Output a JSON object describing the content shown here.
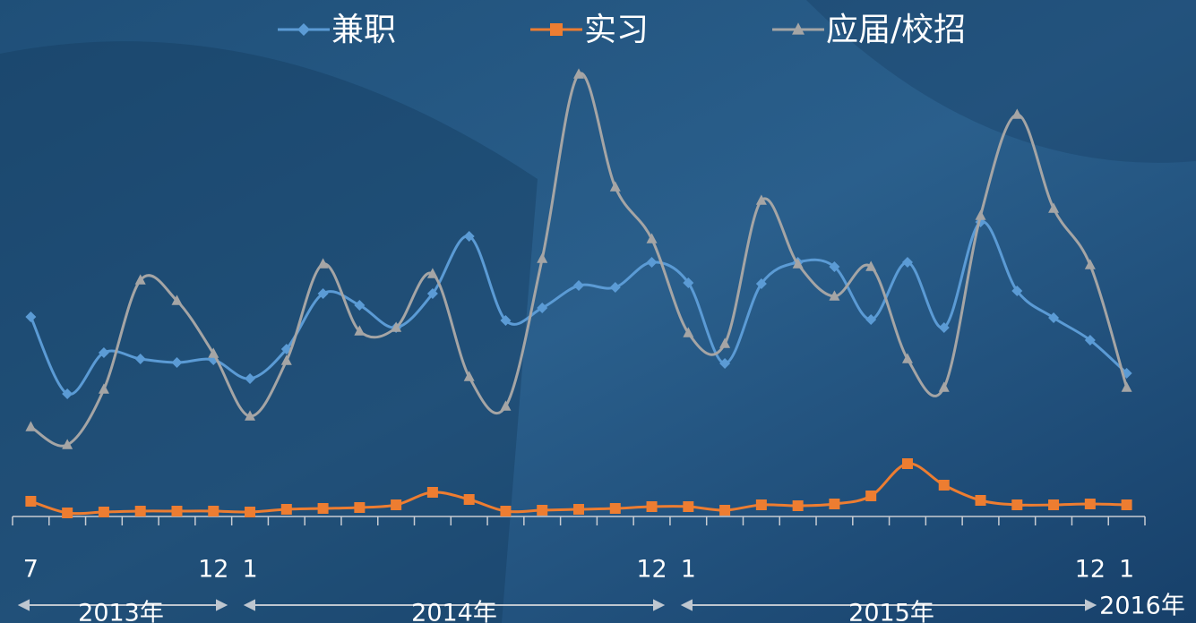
{
  "chart_data": {
    "type": "line",
    "categories": [
      "7",
      null,
      null,
      null,
      null,
      "12",
      "1",
      null,
      null,
      null,
      null,
      null,
      null,
      null,
      null,
      null,
      null,
      "12",
      "1",
      null,
      null,
      null,
      null,
      null,
      null,
      null,
      null,
      null,
      null,
      "12",
      "1"
    ],
    "period_labels": [
      "2013年",
      "2014年",
      "2015年",
      "2016年"
    ],
    "ylim": [
      0,
      100
    ],
    "legend": "top",
    "series": [
      {
        "name": "兼职",
        "color": "#5b9bd5",
        "marker": "diamond",
        "values": [
          44.6,
          27.4,
          36.6,
          35.2,
          34.4,
          35,
          30.8,
          37.4,
          49.8,
          47.2,
          42.2,
          49.8,
          62.6,
          43.8,
          46.6,
          51.6,
          51.2,
          56.8,
          52.2,
          34.2,
          52,
          56.8,
          55.8,
          44,
          56.8,
          42.2,
          65.8,
          50.4,
          44.4,
          39.4,
          32
        ]
      },
      {
        "name": "实习",
        "color": "#ed7d31",
        "marker": "square",
        "values": [
          3.4,
          0.8,
          1,
          1.2,
          1.2,
          1.2,
          1,
          1.6,
          1.8,
          2,
          2.6,
          5.4,
          3.8,
          1.2,
          1.4,
          1.6,
          1.8,
          2.2,
          2.2,
          1.4,
          2.6,
          2.4,
          2.8,
          4.6,
          11.8,
          7,
          3.6,
          2.6,
          2.6,
          2.8,
          2.6
        ]
      },
      {
        "name": "应届/校招",
        "color": "#a5a5a5",
        "marker": "triangle",
        "values": [
          20,
          16,
          28.4,
          52.8,
          48.2,
          36.4,
          22.4,
          34.8,
          56.4,
          41.4,
          42.2,
          54.2,
          31.2,
          24.6,
          57.6,
          98.8,
          73.6,
          62,
          41,
          38.6,
          70.6,
          56.4,
          49.2,
          55.8,
          35.2,
          28.8,
          67.2,
          89.8,
          68.8,
          56.2,
          28.8
        ]
      }
    ]
  }
}
